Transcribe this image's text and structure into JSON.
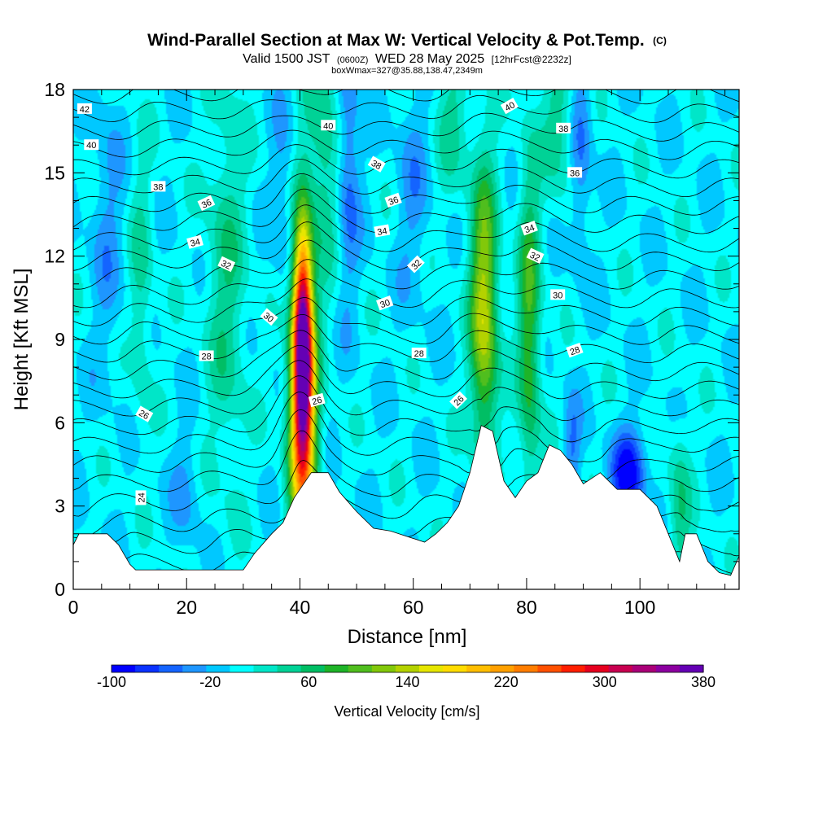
{
  "chart_data": {
    "type": "heatmap",
    "title": "Wind-Parallel Section at Max W: Vertical Velocity & Pot.Temp.",
    "title_mark": "(C)",
    "subtitle": {
      "valid_prefix": "Valid 1500 JST",
      "utc": "(0600Z)",
      "valid_suffix": "WED 28 May 2025",
      "forecast": "[12hrFcst@2232z]"
    },
    "box_info": "boxWmax=327@35.88,138.47,2349m",
    "xlabel": "Distance [nm]",
    "ylabel": "Height [Kft MSL]",
    "xlim": [
      0,
      117.5
    ],
    "ylim": [
      0,
      18
    ],
    "x_ticks": [
      "0",
      "20",
      "40",
      "60",
      "80",
      "100"
    ],
    "y_ticks": [
      "0",
      "3",
      "6",
      "9",
      "12",
      "15",
      "18"
    ],
    "colorbar": {
      "title": "Vertical Velocity [cm/s]",
      "range": [
        -100,
        380
      ],
      "step": 20,
      "tick_labels": [
        "-100",
        "-20",
        "60",
        "140",
        "220",
        "300",
        "380"
      ],
      "colors": [
        "#0000ff",
        "#0a32ff",
        "#1464ff",
        "#1e96ff",
        "#00c8ff",
        "#00ffff",
        "#00e6c8",
        "#00d296",
        "#00be64",
        "#1eb428",
        "#50be1e",
        "#82c80a",
        "#b4d200",
        "#e6e600",
        "#ffdc00",
        "#ffbe00",
        "#ffa000",
        "#ff7d00",
        "#ff5000",
        "#ff1e00",
        "#e6001e",
        "#c80050",
        "#aa0078",
        "#8c00a0",
        "#6400b4"
      ]
    },
    "background_value": 5,
    "terrain_kft": [
      [
        0,
        1.6
      ],
      [
        1,
        2.0
      ],
      [
        6,
        2.0
      ],
      [
        8,
        1.6
      ],
      [
        10,
        0.9
      ],
      [
        11,
        0.7
      ],
      [
        30,
        0.7
      ],
      [
        32,
        1.3
      ],
      [
        35,
        2.0
      ],
      [
        37,
        2.4
      ],
      [
        39,
        3.3
      ],
      [
        42,
        4.2
      ],
      [
        45,
        4.2
      ],
      [
        47,
        3.5
      ],
      [
        50,
        2.8
      ],
      [
        53,
        2.2
      ],
      [
        56,
        2.1
      ],
      [
        59,
        1.9
      ],
      [
        62,
        1.7
      ],
      [
        64,
        2.0
      ],
      [
        66,
        2.4
      ],
      [
        68,
        3.0
      ],
      [
        70,
        4.2
      ],
      [
        72,
        5.9
      ],
      [
        74,
        5.7
      ],
      [
        76,
        3.9
      ],
      [
        78,
        3.3
      ],
      [
        80,
        3.9
      ],
      [
        82,
        4.2
      ],
      [
        84,
        5.2
      ],
      [
        86,
        5.0
      ],
      [
        88,
        4.5
      ],
      [
        90,
        3.8
      ],
      [
        93,
        4.2
      ],
      [
        96,
        3.6
      ],
      [
        100,
        3.6
      ],
      [
        103,
        3.0
      ],
      [
        105,
        2.0
      ],
      [
        107,
        1.0
      ],
      [
        108,
        2.0
      ],
      [
        110,
        2.0
      ],
      [
        112,
        1.0
      ],
      [
        114,
        0.6
      ],
      [
        116,
        0.5
      ],
      [
        117.5,
        1.2
      ]
    ],
    "updraft_cores": [
      {
        "x": 40.5,
        "y": 9.0,
        "value": 327,
        "width_nm": 1.6,
        "depth_kft": 4.0
      },
      {
        "x": 40.5,
        "y": 6.0,
        "value": 220,
        "width_nm": 2.5,
        "depth_kft": 5.0
      },
      {
        "x": 72.5,
        "y": 10.0,
        "value": 155,
        "width_nm": 2.4,
        "depth_kft": 5.0
      },
      {
        "x": 80.5,
        "y": 9.5,
        "value": 100,
        "width_nm": 2.0,
        "depth_kft": 6.0
      },
      {
        "x": 27.0,
        "y": 11.0,
        "value": 55,
        "width_nm": 3.5,
        "depth_kft": 7.0
      },
      {
        "x": 44.0,
        "y": 16.0,
        "value": 60,
        "width_nm": 3.0,
        "depth_kft": 5.0
      },
      {
        "x": 12.0,
        "y": 11.0,
        "value": 45,
        "width_nm": 2.0,
        "depth_kft": 5.0
      },
      {
        "x": 107.0,
        "y": 3.0,
        "value": 55,
        "width_nm": 2.0,
        "depth_kft": 3.0
      },
      {
        "x": 86.0,
        "y": 17.0,
        "value": 55,
        "width_nm": 3.0,
        "depth_kft": 3.0
      },
      {
        "x": 67.0,
        "y": 17.0,
        "value": 45,
        "width_nm": 3.0,
        "depth_kft": 3.0
      }
    ],
    "downdraft_cores": [
      {
        "x": 98.0,
        "y": 4.2,
        "value": -95,
        "width_nm": 3.0,
        "depth_kft": 1.5
      },
      {
        "x": 48.5,
        "y": 15.5,
        "value": -50,
        "width_nm": 2.0,
        "depth_kft": 5.0
      },
      {
        "x": 89.5,
        "y": 16.0,
        "value": -45,
        "width_nm": 2.0,
        "depth_kft": 4.0
      },
      {
        "x": 37.0,
        "y": 14.0,
        "value": -25,
        "width_nm": 2.0,
        "depth_kft": 4.0
      },
      {
        "x": 6.0,
        "y": 13.0,
        "value": -25,
        "width_nm": 3.0,
        "depth_kft": 5.0
      },
      {
        "x": 60.0,
        "y": 14.5,
        "value": -25,
        "width_nm": 3.0,
        "depth_kft": 4.0
      },
      {
        "x": 88.0,
        "y": 5.0,
        "value": -40,
        "width_nm": 1.5,
        "depth_kft": 2.0
      },
      {
        "x": 20.0,
        "y": 3.5,
        "value": -25,
        "width_nm": 2.5,
        "depth_kft": 2.0
      }
    ],
    "theta_contour_count": 30,
    "contour_labels": [
      {
        "text": "42",
        "x": 2.0,
        "y": 17.3,
        "angle": 0
      },
      {
        "text": "40",
        "x": 3.2,
        "y": 16.0,
        "angle": 0
      },
      {
        "text": "38",
        "x": 15.0,
        "y": 14.5,
        "angle": 0
      },
      {
        "text": "36",
        "x": 23.5,
        "y": 13.9,
        "angle": -25
      },
      {
        "text": "34",
        "x": 21.5,
        "y": 12.5,
        "angle": -15
      },
      {
        "text": "32",
        "x": 27.0,
        "y": 11.7,
        "angle": 25
      },
      {
        "text": "30",
        "x": 34.5,
        "y": 9.8,
        "angle": 40
      },
      {
        "text": "28",
        "x": 23.5,
        "y": 8.4,
        "angle": 0
      },
      {
        "text": "26",
        "x": 12.5,
        "y": 6.3,
        "angle": 30
      },
      {
        "text": "24",
        "x": 12.0,
        "y": 3.3,
        "angle": -90
      },
      {
        "text": "40",
        "x": 45.0,
        "y": 16.7,
        "angle": 0
      },
      {
        "text": "38",
        "x": 53.5,
        "y": 15.3,
        "angle": 30
      },
      {
        "text": "36",
        "x": 56.5,
        "y": 14.0,
        "angle": -20
      },
      {
        "text": "34",
        "x": 54.5,
        "y": 12.9,
        "angle": -10
      },
      {
        "text": "32",
        "x": 60.5,
        "y": 11.7,
        "angle": -45
      },
      {
        "text": "30",
        "x": 55.0,
        "y": 10.3,
        "angle": -20
      },
      {
        "text": "28",
        "x": 61.0,
        "y": 8.5,
        "angle": 0
      },
      {
        "text": "26",
        "x": 43.0,
        "y": 6.8,
        "angle": -15
      },
      {
        "text": "26",
        "x": 68.0,
        "y": 6.8,
        "angle": -45
      },
      {
        "text": "40",
        "x": 77.0,
        "y": 17.4,
        "angle": -30
      },
      {
        "text": "38",
        "x": 86.5,
        "y": 16.6,
        "angle": 0
      },
      {
        "text": "36",
        "x": 88.5,
        "y": 15.0,
        "angle": 0
      },
      {
        "text": "34",
        "x": 80.5,
        "y": 13.0,
        "angle": -20
      },
      {
        "text": "32",
        "x": 81.5,
        "y": 12.0,
        "angle": 25
      },
      {
        "text": "30",
        "x": 85.5,
        "y": 10.6,
        "angle": 0
      },
      {
        "text": "28",
        "x": 88.5,
        "y": 8.6,
        "angle": -20
      }
    ]
  }
}
